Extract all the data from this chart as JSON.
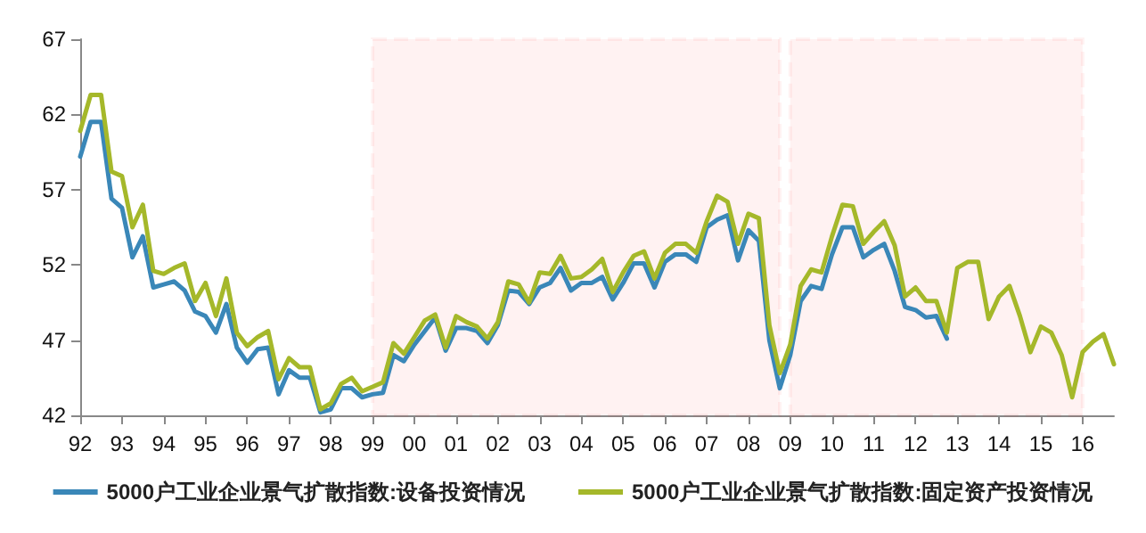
{
  "chart_data": {
    "type": "line",
    "x": [
      1992,
      1992.25,
      1992.5,
      1992.75,
      1993,
      1993.25,
      1993.5,
      1993.75,
      1994,
      1994.25,
      1994.5,
      1994.75,
      1995,
      1995.25,
      1995.5,
      1995.75,
      1996,
      1996.25,
      1996.5,
      1996.75,
      1997,
      1997.25,
      1997.5,
      1997.75,
      1998,
      1998.25,
      1998.5,
      1998.75,
      1999,
      1999.25,
      1999.5,
      1999.75,
      2000,
      2000.25,
      2000.5,
      2000.75,
      2001,
      2001.25,
      2001.5,
      2001.75,
      2002,
      2002.25,
      2002.5,
      2002.75,
      2003,
      2003.25,
      2003.5,
      2003.75,
      2004,
      2004.25,
      2004.5,
      2004.75,
      2005,
      2005.25,
      2005.5,
      2005.75,
      2006,
      2006.25,
      2006.5,
      2006.75,
      2007,
      2007.25,
      2007.5,
      2007.75,
      2008,
      2008.25,
      2008.5,
      2008.75,
      2009,
      2009.25,
      2009.5,
      2009.75,
      2010,
      2010.25,
      2010.5,
      2010.75,
      2011,
      2011.25,
      2011.5,
      2011.75,
      2012,
      2012.25,
      2012.5,
      2012.75,
      2013,
      2013.25,
      2013.5,
      2013.75,
      2014,
      2014.25,
      2014.5,
      2014.75,
      2015,
      2015.25,
      2015.5,
      2015.75,
      2016,
      2016.25,
      2016.5,
      2016.75
    ],
    "series": [
      {
        "name": "5000户工业企业景气扩散指数:设备投资情况",
        "color": "#3a87b8",
        "values": [
          59.2,
          61.5,
          61.5,
          56.4,
          55.8,
          52.5,
          53.9,
          50.5,
          50.7,
          50.9,
          50.3,
          48.9,
          48.6,
          47.5,
          49.4,
          46.5,
          45.5,
          46.4,
          46.5,
          43.4,
          45.0,
          44.5,
          44.5,
          42.2,
          42.4,
          43.8,
          43.8,
          43.2,
          43.4,
          43.5,
          46.0,
          45.6,
          46.7,
          47.6,
          48.5,
          46.3,
          47.8,
          47.8,
          47.6,
          46.8,
          48.0,
          50.3,
          50.2,
          49.4,
          50.5,
          50.8,
          51.8,
          50.3,
          50.8,
          50.8,
          51.2,
          49.7,
          50.8,
          52.1,
          52.1,
          50.5,
          52.2,
          52.7,
          52.7,
          52.2,
          54.5,
          55.0,
          55.3,
          52.3,
          54.3,
          53.6,
          47.0,
          43.8,
          46.0,
          49.6,
          50.6,
          50.4,
          52.7,
          54.5,
          54.5,
          52.5,
          53.0,
          53.4,
          51.6,
          49.2,
          49.0,
          48.5,
          48.6,
          47.1,
          null,
          null,
          null,
          null,
          null,
          null,
          null,
          null,
          null,
          null,
          null,
          null,
          null,
          null,
          null,
          null
        ]
      },
      {
        "name": "5000户工业企业景气扩散指数:固定资产投资情况",
        "color": "#a5b82a",
        "values": [
          60.9,
          63.3,
          63.3,
          58.2,
          57.9,
          54.5,
          56.0,
          51.6,
          51.4,
          51.8,
          52.1,
          49.6,
          50.8,
          48.6,
          51.1,
          47.5,
          46.6,
          47.2,
          47.6,
          44.4,
          45.8,
          45.2,
          45.2,
          42.4,
          42.8,
          44.1,
          44.5,
          43.6,
          43.9,
          44.2,
          46.8,
          46.1,
          47.2,
          48.3,
          48.7,
          46.5,
          48.6,
          48.2,
          47.9,
          47.1,
          48.2,
          50.9,
          50.7,
          49.5,
          51.5,
          51.4,
          52.6,
          51.1,
          51.2,
          51.7,
          52.4,
          50.2,
          51.5,
          52.6,
          52.9,
          51.1,
          52.8,
          53.4,
          53.4,
          52.8,
          54.9,
          56.6,
          56.2,
          53.4,
          55.4,
          55.1,
          48.0,
          44.8,
          46.7,
          50.6,
          51.7,
          51.5,
          53.9,
          56.0,
          55.9,
          53.4,
          54.2,
          54.9,
          53.3,
          49.9,
          50.5,
          49.6,
          49.6,
          47.5,
          51.8,
          52.2,
          52.2,
          48.4,
          49.9,
          50.6,
          48.6,
          46.2,
          47.9,
          47.5,
          46.0,
          43.2,
          46.2,
          46.9,
          47.4,
          45.4
        ]
      }
    ],
    "xlim": [
      1992,
      2016.75
    ],
    "xticks": [
      {
        "value": 1992,
        "label": "92"
      },
      {
        "value": 1993,
        "label": "93"
      },
      {
        "value": 1994,
        "label": "94"
      },
      {
        "value": 1995,
        "label": "95"
      },
      {
        "value": 1996,
        "label": "96"
      },
      {
        "value": 1997,
        "label": "97"
      },
      {
        "value": 1998,
        "label": "98"
      },
      {
        "value": 1999,
        "label": "99"
      },
      {
        "value": 2000,
        "label": "00"
      },
      {
        "value": 2001,
        "label": "01"
      },
      {
        "value": 2002,
        "label": "02"
      },
      {
        "value": 2003,
        "label": "03"
      },
      {
        "value": 2004,
        "label": "04"
      },
      {
        "value": 2005,
        "label": "05"
      },
      {
        "value": 2006,
        "label": "06"
      },
      {
        "value": 2007,
        "label": "07"
      },
      {
        "value": 2008,
        "label": "08"
      },
      {
        "value": 2009,
        "label": "09"
      },
      {
        "value": 2010,
        "label": "10"
      },
      {
        "value": 2011,
        "label": "11"
      },
      {
        "value": 2012,
        "label": "12"
      },
      {
        "value": 2013,
        "label": "13"
      },
      {
        "value": 2014,
        "label": "14"
      },
      {
        "value": 2015,
        "label": "15"
      },
      {
        "value": 2016,
        "label": "16"
      }
    ],
    "ylim": [
      42,
      67
    ],
    "yticks": [
      42,
      47,
      52,
      57,
      62,
      67
    ],
    "bands": [
      {
        "axis": "x",
        "from": 1999,
        "to": 2008.75,
        "color": "#ff0000"
      },
      {
        "axis": "x",
        "from": 2009,
        "to": 2016,
        "color": "#ff0000"
      }
    ],
    "grid": false,
    "legend": "bottom",
    "marker": "none",
    "line_style": "solid"
  }
}
